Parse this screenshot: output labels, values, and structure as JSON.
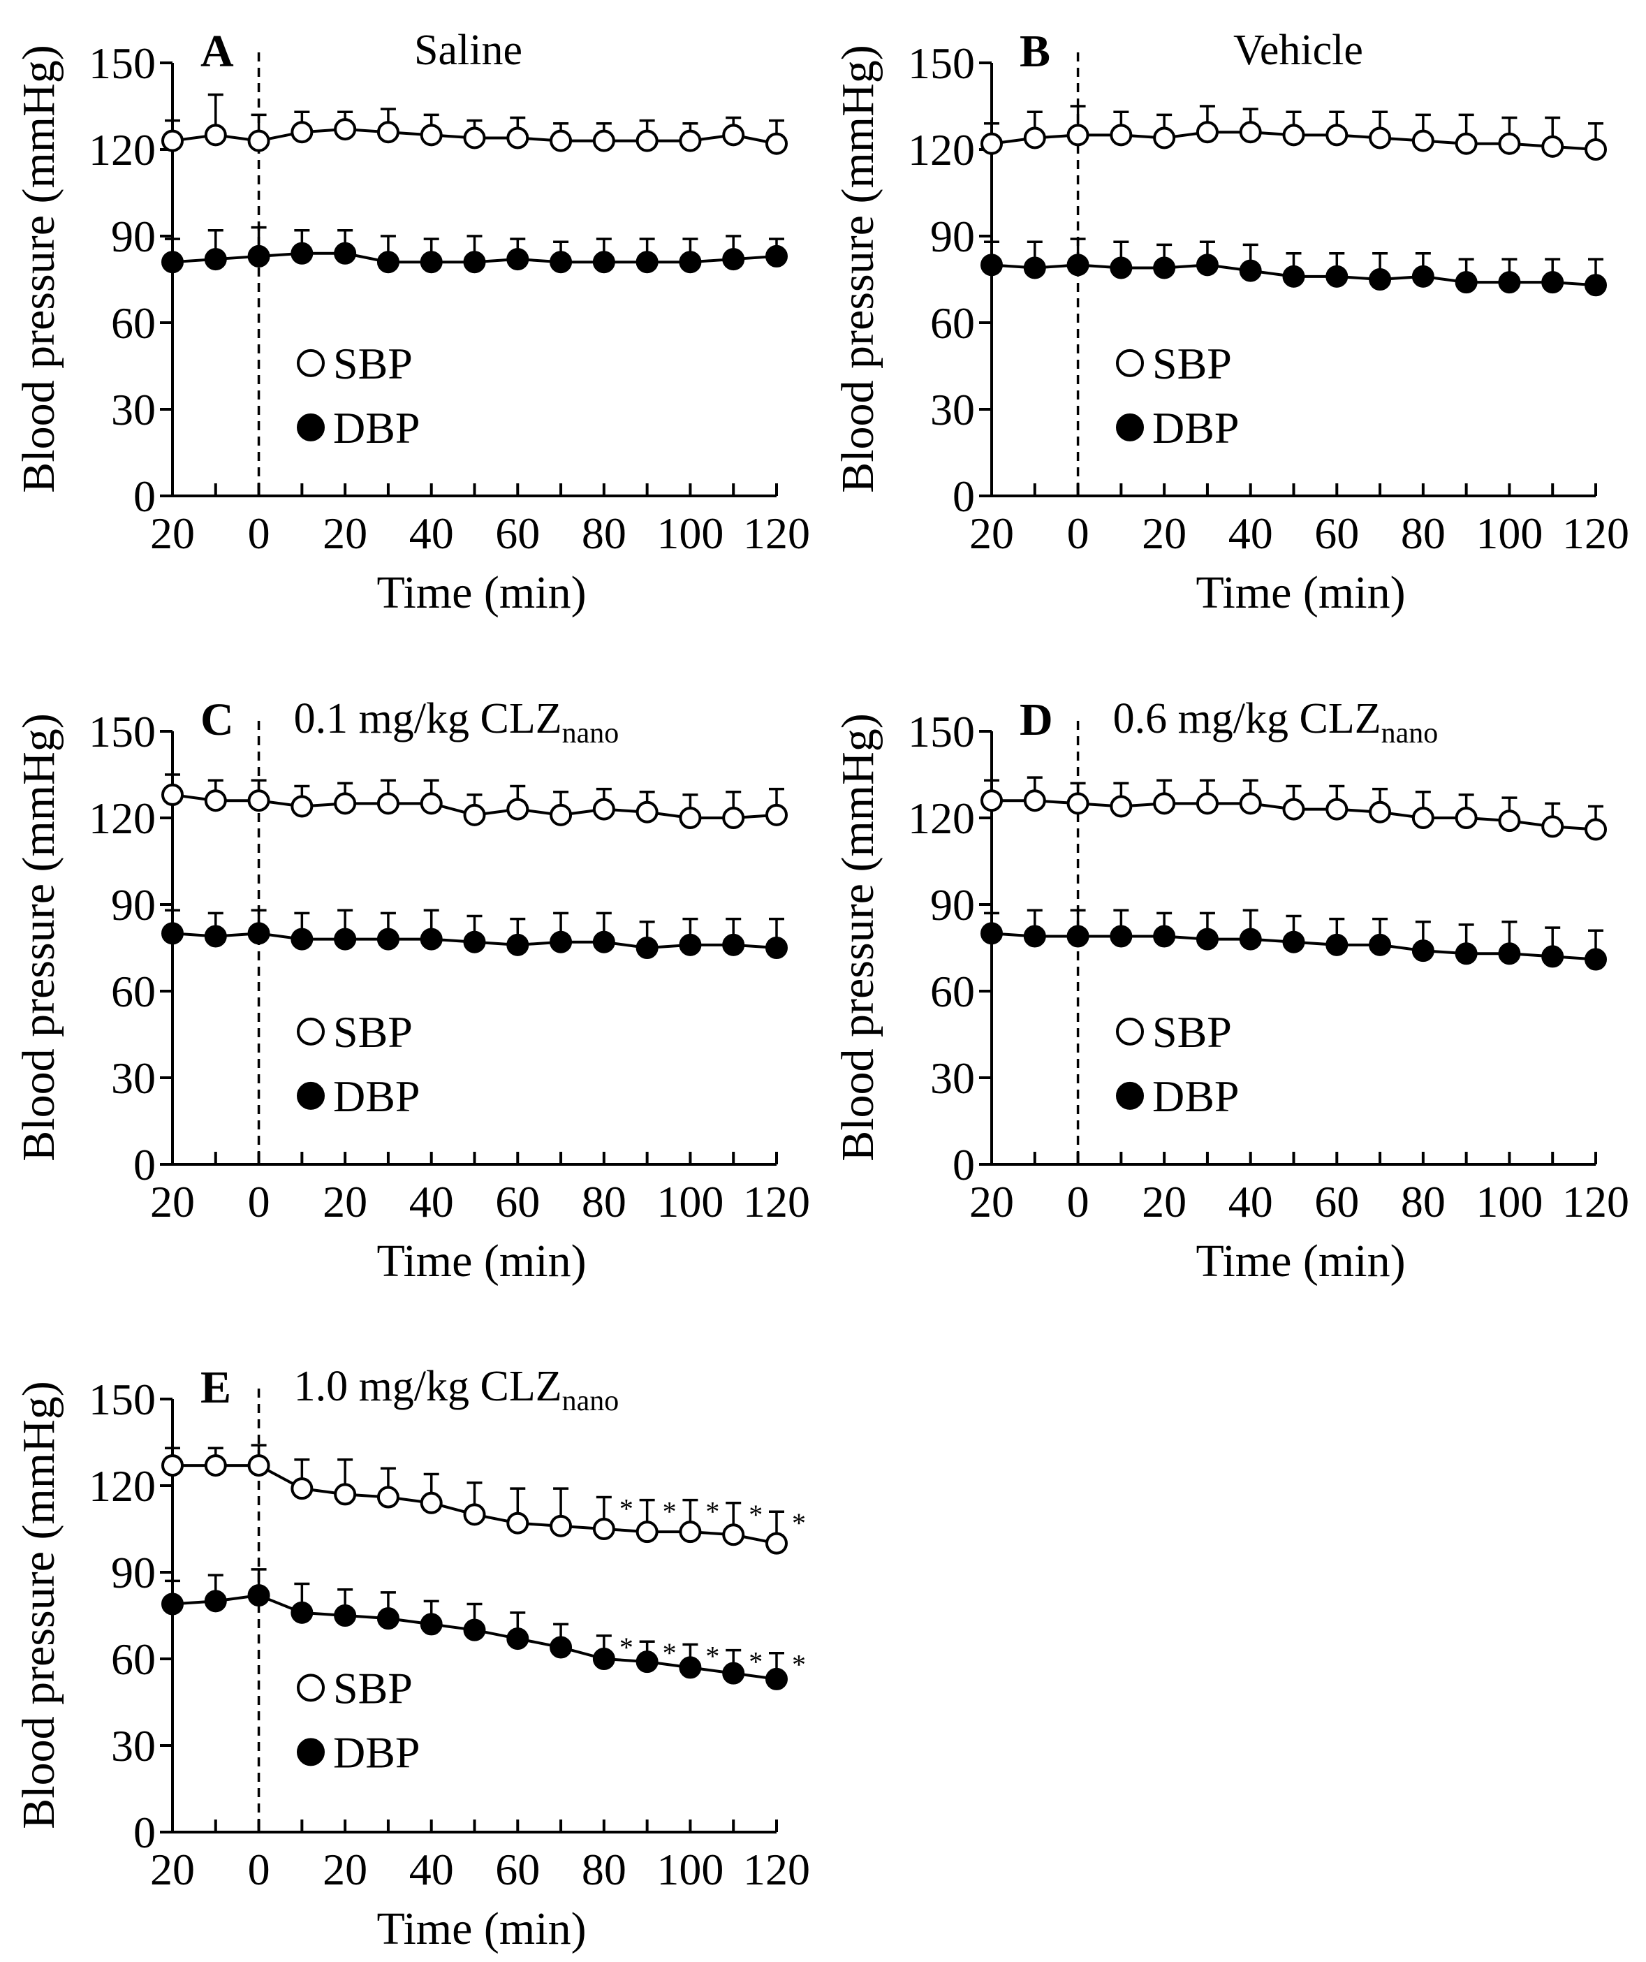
{
  "figure": {
    "x_label": "Time (min)",
    "y_label": "Blood pressure (mmHg)",
    "x_tick_labels": [
      "20",
      "0",
      "20",
      "40",
      "60",
      "80",
      "100",
      "120"
    ],
    "y_tick_labels": [
      "0",
      "30",
      "60",
      "90",
      "120",
      "150"
    ]
  },
  "chart_data": [
    {
      "type": "line",
      "panel": "A",
      "condition": "Saline",
      "condition_sub": "",
      "x": [
        -20,
        -10,
        0,
        10,
        20,
        30,
        40,
        50,
        60,
        70,
        80,
        90,
        100,
        110,
        120
      ],
      "xlim": [
        -20,
        120
      ],
      "ylim": [
        0,
        150
      ],
      "xlabel": "Time (min)",
      "ylabel": "Blood pressure (mmHg)",
      "dashed_line_x": 0,
      "legend": {
        "position": "center-left",
        "entries": [
          "SBP",
          "DBP"
        ]
      },
      "series": [
        {
          "name": "SBP",
          "marker": "open-circle",
          "values": [
            123,
            125,
            123,
            126,
            127,
            126,
            125,
            124,
            124,
            123,
            123,
            123,
            123,
            125,
            122
          ],
          "errors": [
            7,
            14,
            9,
            7,
            6,
            8,
            7,
            6,
            7,
            6,
            6,
            7,
            6,
            6,
            8
          ],
          "significant": [
            false,
            false,
            false,
            false,
            false,
            false,
            false,
            false,
            false,
            false,
            false,
            false,
            false,
            false,
            false
          ]
        },
        {
          "name": "DBP",
          "marker": "filled-circle",
          "values": [
            81,
            82,
            83,
            84,
            84,
            81,
            81,
            81,
            82,
            81,
            81,
            81,
            81,
            82,
            83
          ],
          "errors": [
            8,
            10,
            10,
            8,
            8,
            9,
            8,
            9,
            7,
            7,
            8,
            8,
            8,
            8,
            6
          ],
          "significant": [
            false,
            false,
            false,
            false,
            false,
            false,
            false,
            false,
            false,
            false,
            false,
            false,
            false,
            false,
            false
          ]
        }
      ]
    },
    {
      "type": "line",
      "panel": "B",
      "condition": "Vehicle",
      "condition_sub": "",
      "x": [
        -20,
        -10,
        0,
        10,
        20,
        30,
        40,
        50,
        60,
        70,
        80,
        90,
        100,
        110,
        120
      ],
      "xlim": [
        -20,
        120
      ],
      "ylim": [
        0,
        150
      ],
      "xlabel": "Time (min)",
      "ylabel": "Blood pressure (mmHg)",
      "dashed_line_x": 0,
      "legend": {
        "position": "center-left",
        "entries": [
          "SBP",
          "DBP"
        ]
      },
      "series": [
        {
          "name": "SBP",
          "marker": "open-circle",
          "values": [
            122,
            124,
            125,
            125,
            124,
            126,
            126,
            125,
            125,
            124,
            123,
            122,
            122,
            121,
            120
          ],
          "errors": [
            7,
            9,
            10,
            8,
            8,
            9,
            8,
            8,
            8,
            9,
            9,
            10,
            9,
            10,
            9
          ],
          "significant": [
            false,
            false,
            false,
            false,
            false,
            false,
            false,
            false,
            false,
            false,
            false,
            false,
            false,
            false,
            false
          ]
        },
        {
          "name": "DBP",
          "marker": "filled-circle",
          "values": [
            80,
            79,
            80,
            79,
            79,
            80,
            78,
            76,
            76,
            75,
            76,
            74,
            74,
            74,
            73
          ],
          "errors": [
            8,
            9,
            9,
            9,
            8,
            8,
            9,
            8,
            8,
            9,
            8,
            8,
            8,
            8,
            9
          ],
          "significant": [
            false,
            false,
            false,
            false,
            false,
            false,
            false,
            false,
            false,
            false,
            false,
            false,
            false,
            false,
            false
          ]
        }
      ]
    },
    {
      "type": "line",
      "panel": "C",
      "condition": "0.1 mg/kg CLZ",
      "condition_sub": "nano",
      "x": [
        -20,
        -10,
        0,
        10,
        20,
        30,
        40,
        50,
        60,
        70,
        80,
        90,
        100,
        110,
        120
      ],
      "xlim": [
        -20,
        120
      ],
      "ylim": [
        0,
        150
      ],
      "xlabel": "Time (min)",
      "ylabel": "Blood pressure (mmHg)",
      "dashed_line_x": 0,
      "legend": {
        "position": "center-left",
        "entries": [
          "SBP",
          "DBP"
        ]
      },
      "series": [
        {
          "name": "SBP",
          "marker": "open-circle",
          "values": [
            128,
            126,
            126,
            124,
            125,
            125,
            125,
            121,
            123,
            121,
            123,
            122,
            120,
            120,
            121
          ],
          "errors": [
            7,
            7,
            7,
            7,
            7,
            8,
            8,
            7,
            8,
            8,
            7,
            7,
            8,
            9,
            9
          ],
          "significant": [
            false,
            false,
            false,
            false,
            false,
            false,
            false,
            false,
            false,
            false,
            false,
            false,
            false,
            false,
            false
          ]
        },
        {
          "name": "DBP",
          "marker": "filled-circle",
          "values": [
            80,
            79,
            80,
            78,
            78,
            78,
            78,
            77,
            76,
            77,
            77,
            75,
            76,
            76,
            75
          ],
          "errors": [
            8,
            8,
            8,
            9,
            10,
            9,
            10,
            9,
            9,
            10,
            10,
            9,
            9,
            9,
            10
          ],
          "significant": [
            false,
            false,
            false,
            false,
            false,
            false,
            false,
            false,
            false,
            false,
            false,
            false,
            false,
            false,
            false
          ]
        }
      ]
    },
    {
      "type": "line",
      "panel": "D",
      "condition": "0.6 mg/kg CLZ",
      "condition_sub": "nano",
      "x": [
        -20,
        -10,
        0,
        10,
        20,
        30,
        40,
        50,
        60,
        70,
        80,
        90,
        100,
        110,
        120
      ],
      "xlim": [
        -20,
        120
      ],
      "ylim": [
        0,
        150
      ],
      "xlabel": "Time (min)",
      "ylabel": "Blood pressure (mmHg)",
      "dashed_line_x": 0,
      "legend": {
        "position": "center-left",
        "entries": [
          "SBP",
          "DBP"
        ]
      },
      "series": [
        {
          "name": "SBP",
          "marker": "open-circle",
          "values": [
            126,
            126,
            125,
            124,
            125,
            125,
            125,
            123,
            123,
            122,
            120,
            120,
            119,
            117,
            116
          ],
          "errors": [
            7,
            8,
            7,
            8,
            8,
            8,
            8,
            8,
            8,
            8,
            9,
            8,
            8,
            8,
            8
          ],
          "significant": [
            false,
            false,
            false,
            false,
            false,
            false,
            false,
            false,
            false,
            false,
            false,
            false,
            false,
            false,
            false
          ]
        },
        {
          "name": "DBP",
          "marker": "filled-circle",
          "values": [
            80,
            79,
            79,
            79,
            79,
            78,
            78,
            77,
            76,
            76,
            74,
            73,
            73,
            72,
            71
          ],
          "errors": [
            7,
            9,
            9,
            9,
            8,
            9,
            10,
            9,
            9,
            9,
            10,
            10,
            11,
            10,
            10
          ],
          "significant": [
            false,
            false,
            false,
            false,
            false,
            false,
            false,
            false,
            false,
            false,
            false,
            false,
            false,
            false,
            false
          ]
        }
      ]
    },
    {
      "type": "line",
      "panel": "E",
      "condition": "1.0 mg/kg CLZ",
      "condition_sub": "nano",
      "x": [
        -20,
        -10,
        0,
        10,
        20,
        30,
        40,
        50,
        60,
        70,
        80,
        90,
        100,
        110,
        120
      ],
      "xlim": [
        -20,
        120
      ],
      "ylim": [
        0,
        150
      ],
      "xlabel": "Time (min)",
      "ylabel": "Blood pressure (mmHg)",
      "dashed_line_x": 0,
      "legend": {
        "position": "bottom-left",
        "entries": [
          "SBP",
          "DBP"
        ]
      },
      "significance_marker": "*",
      "series": [
        {
          "name": "SBP",
          "marker": "open-circle",
          "values": [
            127,
            127,
            127,
            119,
            117,
            116,
            114,
            110,
            107,
            106,
            105,
            104,
            104,
            103,
            100
          ],
          "errors": [
            6,
            6,
            7,
            10,
            12,
            10,
            10,
            11,
            12,
            13,
            11,
            11,
            11,
            11,
            11
          ],
          "significant": [
            false,
            false,
            false,
            false,
            false,
            false,
            false,
            false,
            false,
            false,
            true,
            true,
            true,
            true,
            true
          ]
        },
        {
          "name": "DBP",
          "marker": "filled-circle",
          "values": [
            79,
            80,
            82,
            76,
            75,
            74,
            72,
            70,
            67,
            64,
            60,
            59,
            57,
            55,
            53
          ],
          "errors": [
            8,
            9,
            9,
            10,
            9,
            9,
            8,
            9,
            9,
            8,
            8,
            7,
            8,
            8,
            9
          ],
          "significant": [
            false,
            false,
            false,
            false,
            false,
            false,
            false,
            false,
            false,
            false,
            true,
            true,
            true,
            true,
            true
          ]
        }
      ]
    }
  ]
}
